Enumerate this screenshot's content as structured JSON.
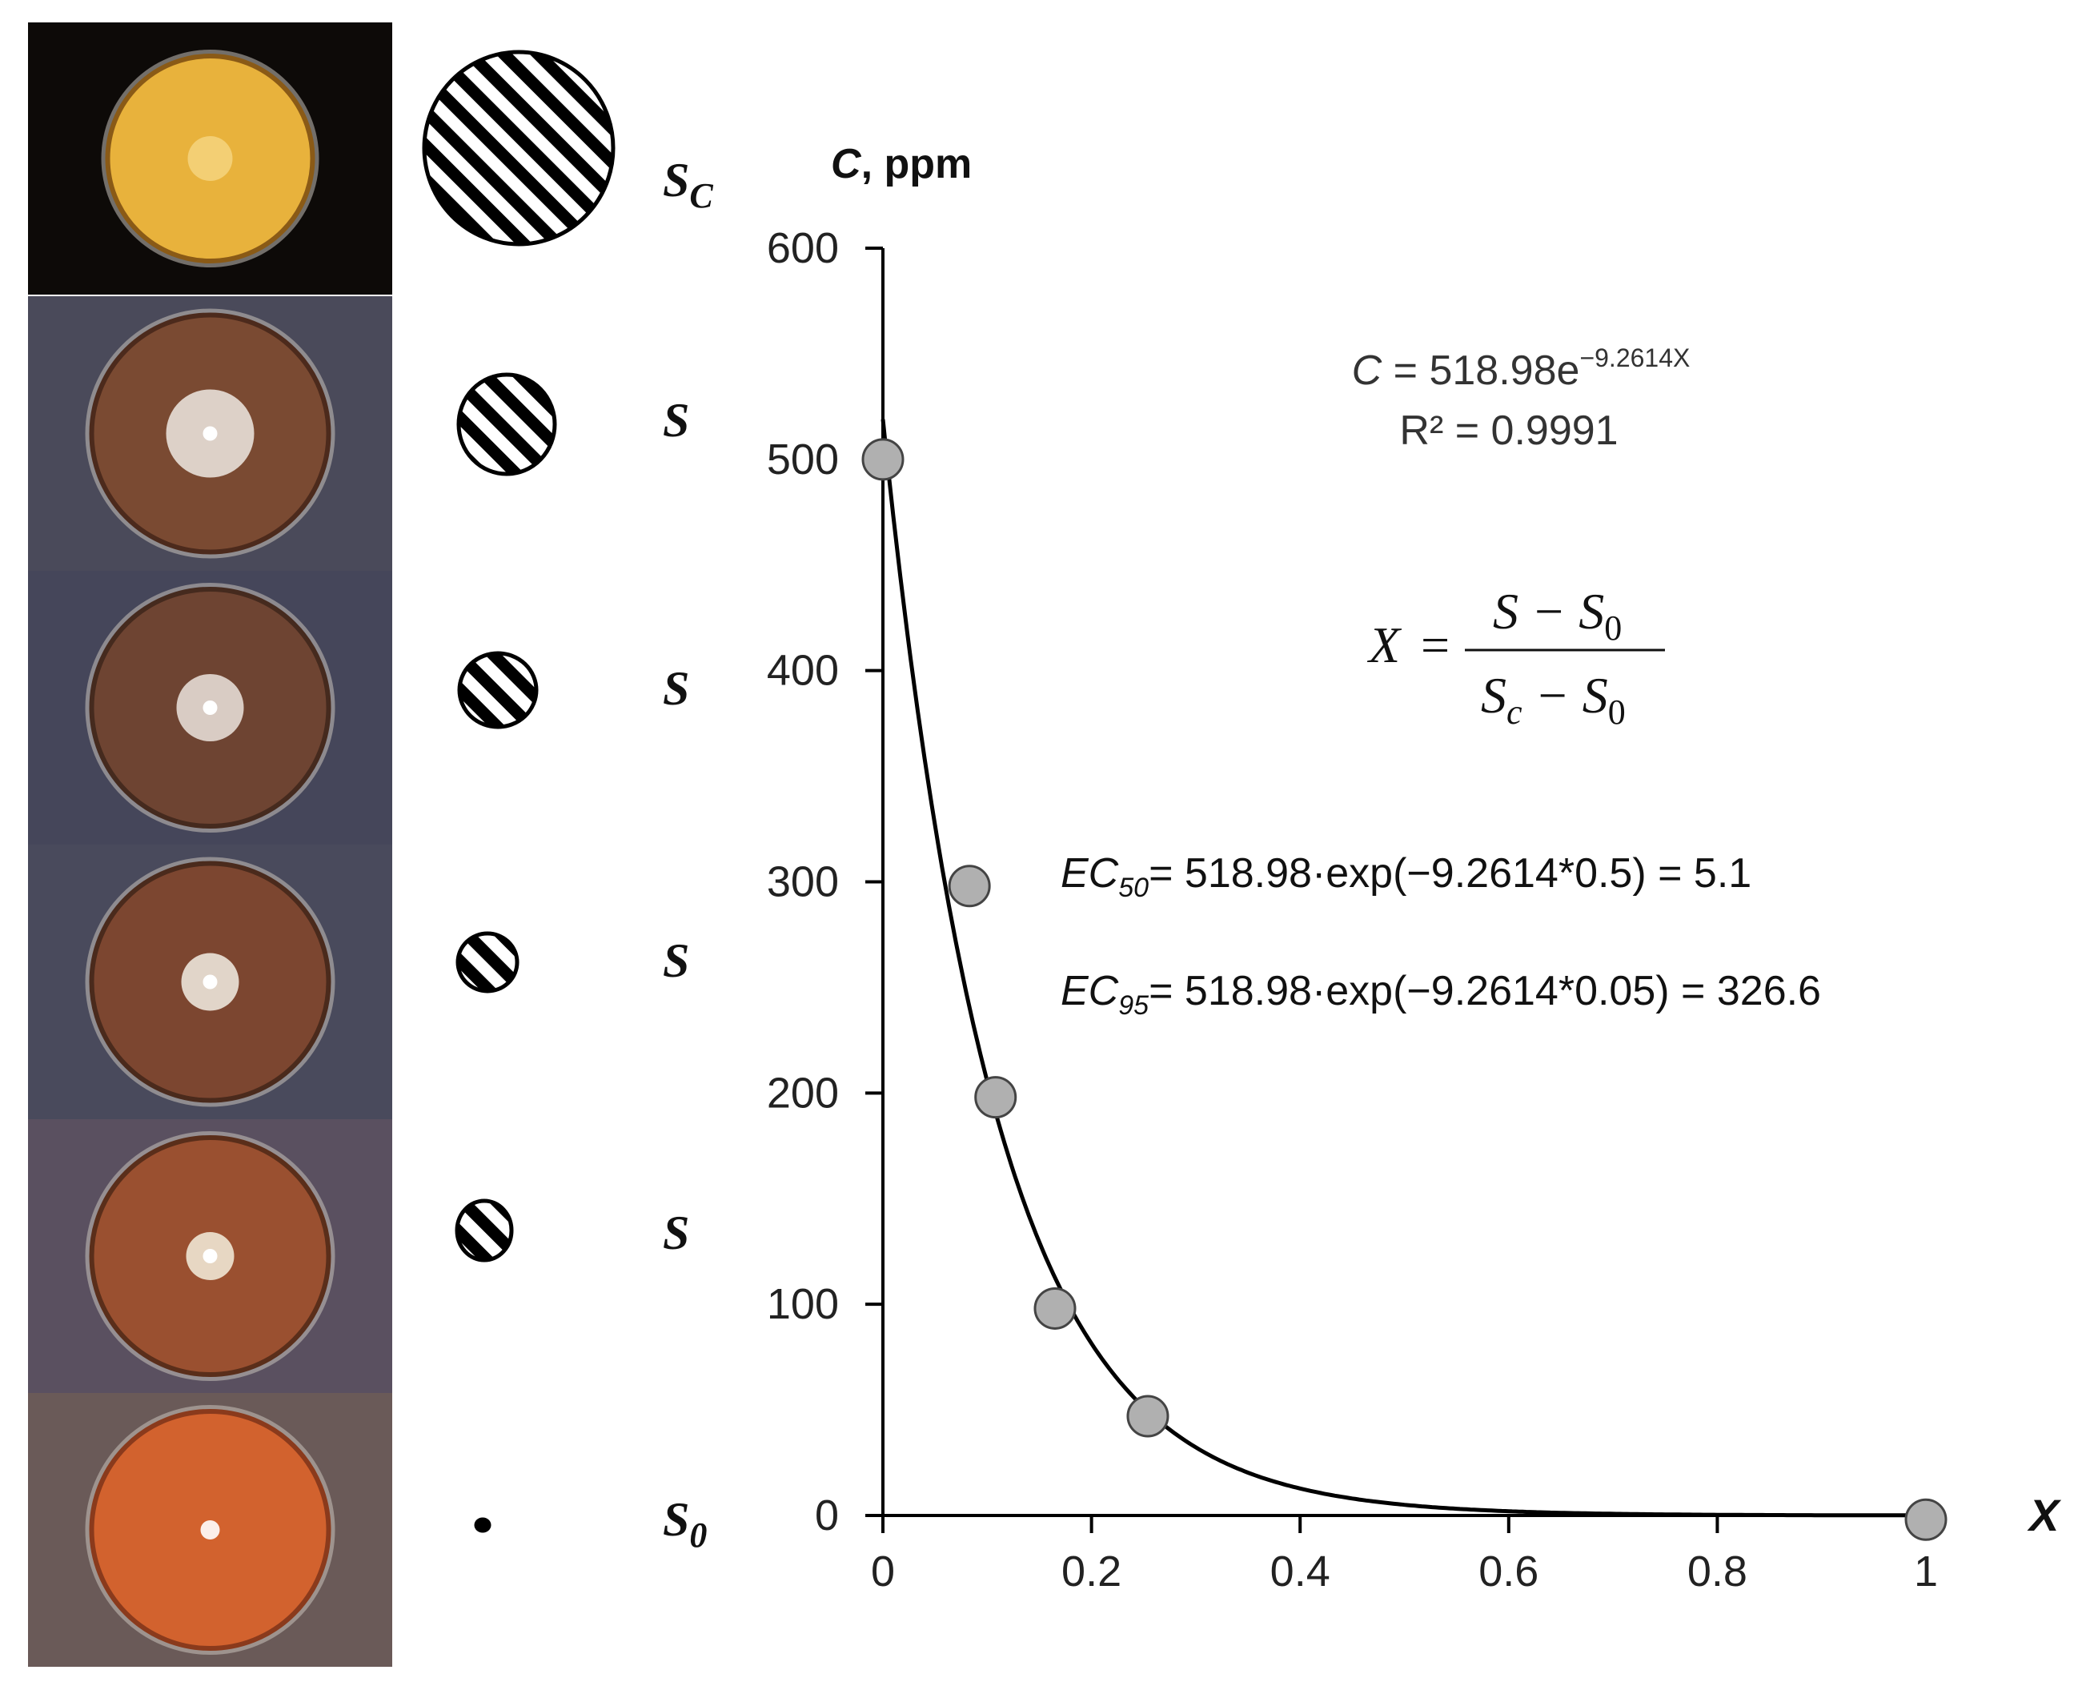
{
  "photos": [
    {
      "label": "Sc",
      "main": "S",
      "sub": "C",
      "plate_bg": "#0d0a08",
      "agar": "#e8b23c",
      "agar_edge": "#8a5a16",
      "colony": "#f4d27a"
    },
    {
      "label": "S",
      "main": "S",
      "sub": "",
      "plate_bg": "#4a4a5a",
      "agar": "#7a4a32",
      "agar_edge": "#4c2a1c",
      "colony": "#e8e0d8"
    },
    {
      "label": "S",
      "main": "S",
      "sub": "",
      "plate_bg": "#45465a",
      "agar": "#6e4432",
      "agar_edge": "#452a1e",
      "colony": "#e4dcd4"
    },
    {
      "label": "S",
      "main": "S",
      "sub": "",
      "plate_bg": "#494a5c",
      "agar": "#7c4630",
      "agar_edge": "#4a2a1c",
      "colony": "#ece4da"
    },
    {
      "label": "S",
      "main": "S",
      "sub": "",
      "plate_bg": "#5a5060",
      "agar": "#9a5030",
      "agar_edge": "#5a2e1a",
      "colony": "#f0e6d4"
    },
    {
      "label": "S0",
      "main": "S",
      "sub": "0",
      "plate_bg": "#6a5a58",
      "agar": "#d2622e",
      "agar_edge": "#8a3a1c",
      "colony": "#ffffff"
    }
  ],
  "chart_data": {
    "type": "scatter",
    "ylabel": "C, ppm",
    "xlabel": "X",
    "xlim": [
      0,
      1
    ],
    "ylim": [
      0,
      600
    ],
    "xticks": [
      0,
      0.2,
      0.4,
      0.6,
      0.8,
      1
    ],
    "xtick_labels": [
      "0",
      "0.2",
      "0.4",
      "0.6",
      "0.8",
      "1"
    ],
    "yticks": [
      0,
      100,
      200,
      300,
      400,
      500,
      600
    ],
    "ytick_labels": [
      "0",
      "100",
      "200",
      "300",
      "400",
      "500",
      "600"
    ],
    "series": [
      {
        "points": [
          {
            "x": 0.0,
            "y": 500
          },
          {
            "x": 0.083,
            "y": 298
          },
          {
            "x": 0.108,
            "y": 198
          },
          {
            "x": 0.165,
            "y": 98
          },
          {
            "x": 0.254,
            "y": 47
          },
          {
            "x": 1.0,
            "y": -2
          }
        ],
        "color": "#b0b0b0"
      }
    ],
    "fit": {
      "type": "exponential",
      "a": 518.98,
      "b": -9.2614
    },
    "annotations": {
      "equation": {
        "lhs": "C",
        "rest": " = 518.98e",
        "exp": "−9.2614X"
      },
      "r2": "R² = 0.9991",
      "formula": {
        "x": "X",
        "eq": "=",
        "num": "S − S",
        "num_sub": "0",
        "den": "S",
        "den_sub1": "c",
        "den_mid": " − S",
        "den_sub2": "0"
      },
      "ec50": {
        "main": "EC",
        "sub": "50",
        "rest": "= 518.98·exp(−9.2614*0.5) = 5.1"
      },
      "ec95": {
        "main": "EC",
        "sub": "95",
        "rest": "= 518.98·exp(−9.2614*0.05) = 326.6"
      }
    }
  }
}
